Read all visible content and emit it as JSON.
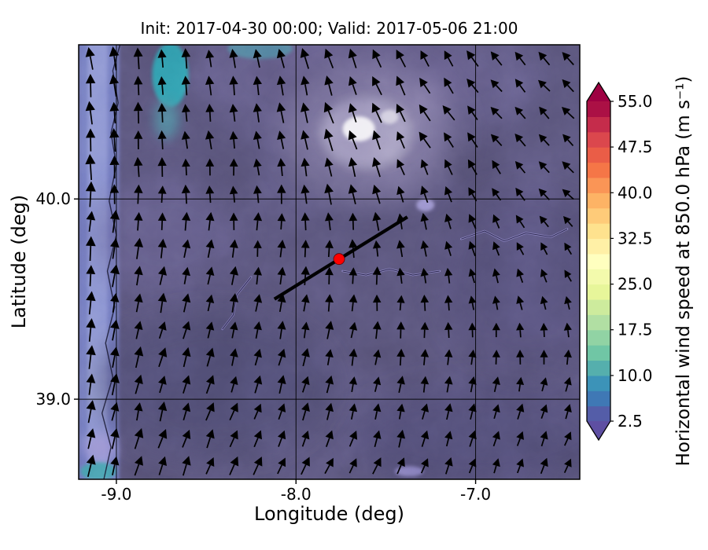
{
  "figure": {
    "background": "#ffffff",
    "text_color": "#000000"
  },
  "chart_data": {
    "type": "heatmap",
    "subtype": "filled-contour wind-speed map with quiver (wind vector) overlay",
    "title": "Init: 2017-04-30 00:00; Valid: 2017-05-06 21:00",
    "xlabel": "Longitude (deg)",
    "ylabel": "Latitude (deg)",
    "xlim": [
      -9.21,
      -6.42
    ],
    "ylim": [
      38.6,
      40.77
    ],
    "x_ticks": [
      -9.0,
      -8.0,
      -7.0
    ],
    "x_tick_labels": [
      "-9.0",
      "-8.0",
      "-7.0"
    ],
    "y_ticks": [
      40.0,
      39.0
    ],
    "y_tick_labels": [
      "40.0",
      "39.0"
    ],
    "grid": true,
    "grid_color": "#000000",
    "base_field_color": "#575278",
    "colorbar": {
      "label": "Horizontal wind speed at 850.0 hPa (m s⁻¹)",
      "vmin": 2.5,
      "vmax": 55.0,
      "level_step": 2.5,
      "extend": "both",
      "colormap": "Spectral_r",
      "ticks": [
        2.5,
        10.0,
        17.5,
        25.0,
        32.5,
        40.0,
        47.5,
        55.0
      ],
      "tick_labels": [
        "2.5",
        "10.0",
        "17.5",
        "25.0",
        "32.5",
        "40.0",
        "47.5",
        "55.0"
      ],
      "under_color": "#5E4FA2",
      "over_color": "#9E0142",
      "segment_colors": [
        "#545DA8",
        "#3F78B5",
        "#3C93B8",
        "#55AFAD",
        "#70C6A5",
        "#91D3A4",
        "#B1DFA3",
        "#CDEB9D",
        "#E7F69A",
        "#F3FAAC",
        "#FFFFBF",
        "#FFF0A6",
        "#FEE28E",
        "#FECB79",
        "#FDB365",
        "#FA9556",
        "#F57647",
        "#EA5D47",
        "#DB474D",
        "#C52C4B",
        "#AB1045"
      ]
    },
    "annotations": {
      "marker": {
        "type": "point",
        "lon": -7.76,
        "lat": 39.7,
        "color": "#FF0000",
        "edge_color": "#5A0000"
      },
      "cross_section_line": {
        "lon1": -8.12,
        "lat1": 39.5,
        "lon2": -7.38,
        "lat2": 39.91,
        "color": "#000000"
      }
    },
    "features": [
      {
        "name": "atlantic-band",
        "type": "rect",
        "lon1": -9.21,
        "lon2": -8.985,
        "color": "#6F78BE",
        "opacity": 1,
        "blur": "sm"
      },
      {
        "name": "atlantic-band-bright",
        "type": "rect",
        "lon1": -9.16,
        "lon2": -9.05,
        "color": "#8A93D2",
        "opacity": 0.95,
        "blur": "sm"
      },
      {
        "name": "haze-west",
        "lon": -8.72,
        "lat": 39.82,
        "rx": 0.42,
        "ry": 0.3,
        "color": "#6A6494",
        "opacity": 0.45,
        "blur": "lg"
      },
      {
        "name": "haze-top",
        "lon": -7.6,
        "lat": 40.6,
        "rx": 0.9,
        "ry": 0.35,
        "color": "#6F6899",
        "opacity": 0.4,
        "blur": "lg"
      },
      {
        "name": "dark-region-sw",
        "lon": -8.46,
        "lat": 39.07,
        "rx": 0.66,
        "ry": 0.36,
        "color": "#4C4870",
        "opacity": 0.6,
        "blur": "lg"
      },
      {
        "name": "dark-band-south",
        "lon": -6.97,
        "lat": 38.82,
        "rx": 0.72,
        "ry": 0.26,
        "color": "#4E4A74",
        "opacity": 0.55,
        "blur": "lg"
      },
      {
        "name": "dark-region-east",
        "lon": -6.7,
        "lat": 39.6,
        "rx": 0.5,
        "ry": 0.45,
        "color": "#524E78",
        "opacity": 0.5,
        "blur": "lg"
      },
      {
        "name": "teal-patch-nw",
        "lon": -8.7,
        "lat": 40.62,
        "rx": 0.1,
        "ry": 0.16,
        "color": "#2EA0B0",
        "opacity": 0.95,
        "blur": "sm"
      },
      {
        "name": "teal-patch-nw-ext",
        "lon": -8.72,
        "lat": 40.4,
        "rx": 0.07,
        "ry": 0.1,
        "color": "#4D93A6",
        "opacity": 0.7,
        "blur": "md"
      },
      {
        "name": "teal-smear-top",
        "lon": -8.2,
        "lat": 40.75,
        "rx": 0.18,
        "ry": 0.05,
        "color": "#4D89A2",
        "opacity": 0.8,
        "blur": "sm"
      },
      {
        "name": "light-region-outer",
        "lon": -7.59,
        "lat": 40.33,
        "rx": 0.5,
        "ry": 0.36,
        "color": "#837BA6",
        "opacity": 0.6,
        "blur": "lg"
      },
      {
        "name": "light-region-mid",
        "lon": -7.61,
        "lat": 40.33,
        "rx": 0.25,
        "ry": 0.18,
        "color": "#A8A0C4",
        "opacity": 0.8,
        "blur": "md"
      },
      {
        "name": "bright-core",
        "lon": -7.65,
        "lat": 40.35,
        "rx": 0.09,
        "ry": 0.062,
        "color": "#F0EEF4",
        "opacity": 1,
        "blur": "sm"
      },
      {
        "name": "bright-core-2",
        "lon": -7.48,
        "lat": 40.41,
        "rx": 0.05,
        "ry": 0.035,
        "color": "#D6D2E2",
        "opacity": 0.9,
        "blur": "sm"
      },
      {
        "name": "lavender-spot",
        "lon": -7.28,
        "lat": 39.97,
        "rx": 0.05,
        "ry": 0.032,
        "color": "#9E96D6",
        "opacity": 0.9,
        "blur": "sm"
      },
      {
        "name": "lavender-coast-south",
        "lon": -9.09,
        "lat": 38.76,
        "rx": 0.09,
        "ry": 0.07,
        "color": "#9A92D2",
        "opacity": 0.9,
        "blur": "md"
      },
      {
        "name": "teal-coast-south",
        "lon": -9.1,
        "lat": 38.64,
        "rx": 0.1,
        "ry": 0.045,
        "color": "#3FA0AA",
        "opacity": 0.9,
        "blur": "sm"
      },
      {
        "name": "lavender-streak-south",
        "lon": -7.37,
        "lat": 38.64,
        "rx": 0.08,
        "ry": 0.025,
        "color": "#8F87C8",
        "opacity": 0.85,
        "blur": "sm"
      }
    ],
    "coastline": [
      [
        -8.98,
        40.77
      ],
      [
        -9.02,
        40.64
      ],
      [
        -8.99,
        40.48
      ],
      [
        -9.03,
        40.33
      ],
      [
        -9.0,
        40.17
      ],
      [
        -9.04,
        39.99
      ],
      [
        -9.0,
        39.82
      ],
      [
        -9.05,
        39.64
      ],
      [
        -9.01,
        39.46
      ],
      [
        -9.06,
        39.28
      ],
      [
        -9.02,
        39.11
      ],
      [
        -9.08,
        38.93
      ],
      [
        -9.03,
        38.76
      ],
      [
        -9.07,
        38.6
      ]
    ],
    "rivers": [
      {
        "points": [
          [
            -7.74,
            39.64
          ],
          [
            -7.61,
            39.62
          ],
          [
            -7.48,
            39.65
          ],
          [
            -7.35,
            39.62
          ],
          [
            -7.2,
            39.64
          ]
        ],
        "glow": "#9B93D4",
        "core": "#232041"
      },
      {
        "points": [
          [
            -7.08,
            39.8
          ],
          [
            -6.95,
            39.84
          ],
          [
            -6.84,
            39.79
          ],
          [
            -6.72,
            39.83
          ],
          [
            -6.58,
            39.81
          ],
          [
            -6.49,
            39.85
          ]
        ],
        "glow": "#9B93D4",
        "core": "#232041"
      },
      {
        "points": [
          [
            -8.25,
            39.61
          ],
          [
            -8.33,
            39.52
          ],
          [
            -8.35,
            39.42
          ],
          [
            -8.41,
            39.35
          ]
        ],
        "glow": "#8F87C8",
        "core": "#232041"
      }
    ],
    "quiver": {
      "color": "#000000",
      "cols": 21,
      "rows": 16,
      "direction_grid_deg_cw_from_north": [
        [
          -6,
          -8,
          -10,
          -16,
          -28,
          -38,
          -45
        ],
        [
          -2,
          -4,
          -8,
          -18,
          -30,
          -40,
          -48
        ],
        [
          3,
          5,
          1,
          -4,
          -14,
          -28,
          -46
        ],
        [
          8,
          12,
          13,
          9,
          0,
          -10,
          -18
        ],
        [
          10,
          16,
          19,
          15,
          10,
          12,
          16
        ],
        [
          10,
          18,
          24,
          26,
          22,
          22,
          26
        ]
      ],
      "relative_speed_grid": [
        [
          0.85,
          0.55,
          0.5,
          0.62,
          0.55,
          0.48,
          0.42
        ],
        [
          0.85,
          0.5,
          0.45,
          0.7,
          0.5,
          0.38,
          0.33
        ],
        [
          0.8,
          0.45,
          0.4,
          0.5,
          0.4,
          0.28,
          0.24
        ],
        [
          0.75,
          0.5,
          0.45,
          0.45,
          0.35,
          0.24,
          0.2
        ],
        [
          0.7,
          0.52,
          0.46,
          0.4,
          0.35,
          0.3,
          0.28
        ],
        [
          0.65,
          0.55,
          0.5,
          0.46,
          0.4,
          0.35,
          0.33
        ]
      ]
    }
  }
}
